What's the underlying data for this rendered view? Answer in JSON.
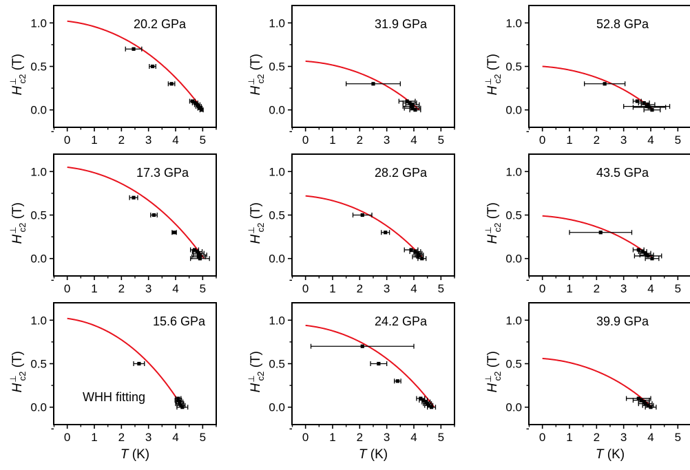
{
  "x_axis_label": {
    "var": "T",
    "unit": " (K)"
  },
  "y_axis_label": {
    "var": "H",
    "sup": "⊥",
    "sub": "c2",
    "unit": " (T)"
  },
  "colors": {
    "fit": "#e8121d",
    "data": "#000000",
    "axis": "#000000"
  },
  "chart_data": [
    {
      "type": "scatter",
      "title": "20.2 GPa",
      "xlim": [
        -0.5,
        5.5
      ],
      "ylim": [
        -0.2,
        1.2
      ],
      "xticks": [
        "0",
        "1",
        "2",
        "3",
        "4",
        "5"
      ],
      "yticks": [
        "0.0",
        "0.5",
        "1.0"
      ],
      "fit": {
        "h0": 1.02,
        "tc": 5.0
      },
      "points": [
        {
          "x": 2.45,
          "y": 0.7,
          "xerr": 0.3
        },
        {
          "x": 3.15,
          "y": 0.5,
          "xerr": 0.12
        },
        {
          "x": 3.85,
          "y": 0.3,
          "xerr": 0.12
        },
        {
          "x": 4.62,
          "y": 0.1,
          "xerr": 0.1
        },
        {
          "x": 4.72,
          "y": 0.08,
          "xerr": 0.1
        },
        {
          "x": 4.8,
          "y": 0.06,
          "xerr": 0.1
        },
        {
          "x": 4.85,
          "y": 0.04,
          "xerr": 0.1
        },
        {
          "x": 4.9,
          "y": 0.02,
          "xerr": 0.08
        },
        {
          "x": 4.96,
          "y": 0.0,
          "xerr": 0.06
        }
      ]
    },
    {
      "type": "scatter",
      "title": "31.9 GPa",
      "xlim": [
        -0.5,
        5.5
      ],
      "ylim": [
        -0.2,
        1.2
      ],
      "xticks": [
        "0",
        "1",
        "2",
        "3",
        "4",
        "5"
      ],
      "yticks": [
        "0.0",
        "0.5",
        "1.0"
      ],
      "fit": {
        "h0": 0.56,
        "tc": 4.2
      },
      "points": [
        {
          "x": 2.5,
          "y": 0.3,
          "xerr": 1.0
        },
        {
          "x": 3.75,
          "y": 0.1,
          "xerr": 0.3
        },
        {
          "x": 3.85,
          "y": 0.08,
          "xerr": 0.25
        },
        {
          "x": 3.95,
          "y": 0.06,
          "xerr": 0.25
        },
        {
          "x": 3.9,
          "y": 0.04,
          "xerr": 0.3
        },
        {
          "x": 3.95,
          "y": 0.02,
          "xerr": 0.3
        },
        {
          "x": 4.05,
          "y": 0.0,
          "xerr": 0.2
        }
      ]
    },
    {
      "type": "scatter",
      "title": "52.8 GPa",
      "xlim": [
        -0.5,
        5.5
      ],
      "ylim": [
        -0.2,
        1.2
      ],
      "xticks": [
        "0",
        "1",
        "2",
        "3",
        "4",
        "5"
      ],
      "yticks": [
        "0.0",
        "0.5",
        "1.0"
      ],
      "fit": {
        "h0": 0.5,
        "tc": 4.1
      },
      "points": [
        {
          "x": 2.3,
          "y": 0.3,
          "xerr": 0.75
        },
        {
          "x": 3.5,
          "y": 0.1,
          "xerr": 0.15
        },
        {
          "x": 3.75,
          "y": 0.08,
          "xerr": 0.2
        },
        {
          "x": 3.9,
          "y": 0.06,
          "xerr": 0.25
        },
        {
          "x": 3.85,
          "y": 0.04,
          "xerr": 0.85
        },
        {
          "x": 3.95,
          "y": 0.03,
          "xerr": 0.6
        },
        {
          "x": 4.05,
          "y": 0.0,
          "xerr": 0.3
        }
      ]
    },
    {
      "type": "scatter",
      "title": "17.3 GPa",
      "xlim": [
        -0.5,
        5.5
      ],
      "ylim": [
        -0.2,
        1.2
      ],
      "xticks": [
        "0",
        "1",
        "2",
        "3",
        "4",
        "5"
      ],
      "yticks": [
        "0.0",
        "0.5",
        "1.0"
      ],
      "fit": {
        "h0": 1.05,
        "tc": 5.05
      },
      "points": [
        {
          "x": 2.45,
          "y": 0.7,
          "xerr": 0.15
        },
        {
          "x": 3.2,
          "y": 0.5,
          "xerr": 0.12
        },
        {
          "x": 3.95,
          "y": 0.3,
          "xerr": 0.08
        },
        {
          "x": 4.7,
          "y": 0.1,
          "xerr": 0.15
        },
        {
          "x": 4.8,
          "y": 0.08,
          "xerr": 0.18
        },
        {
          "x": 4.85,
          "y": 0.06,
          "xerr": 0.2
        },
        {
          "x": 4.9,
          "y": 0.04,
          "xerr": 0.25
        },
        {
          "x": 4.85,
          "y": 0.02,
          "xerr": 0.25
        },
        {
          "x": 4.9,
          "y": 0.0,
          "xerr": 0.35
        }
      ]
    },
    {
      "type": "scatter",
      "title": "28.2 GPa",
      "xlim": [
        -0.5,
        5.5
      ],
      "ylim": [
        -0.2,
        1.2
      ],
      "xticks": [
        "0",
        "1",
        "2",
        "3",
        "4",
        "5"
      ],
      "yticks": [
        "0.0",
        "0.5",
        "1.0"
      ],
      "fit": {
        "h0": 0.72,
        "tc": 4.35
      },
      "points": [
        {
          "x": 2.1,
          "y": 0.5,
          "xerr": 0.35
        },
        {
          "x": 2.95,
          "y": 0.3,
          "xerr": 0.15
        },
        {
          "x": 3.9,
          "y": 0.1,
          "xerr": 0.25
        },
        {
          "x": 4.05,
          "y": 0.08,
          "xerr": 0.2
        },
        {
          "x": 4.15,
          "y": 0.06,
          "xerr": 0.15
        },
        {
          "x": 4.2,
          "y": 0.04,
          "xerr": 0.15
        },
        {
          "x": 4.15,
          "y": 0.02,
          "xerr": 0.2
        },
        {
          "x": 4.3,
          "y": 0.0,
          "xerr": 0.15
        }
      ]
    },
    {
      "type": "scatter",
      "title": "43.5 GPa",
      "xlim": [
        -0.5,
        5.5
      ],
      "ylim": [
        -0.2,
        1.2
      ],
      "xticks": [
        "0",
        "1",
        "2",
        "3",
        "4",
        "5"
      ],
      "yticks": [
        "0.0",
        "0.5",
        "1.0"
      ],
      "fit": {
        "h0": 0.49,
        "tc": 4.1
      },
      "points": [
        {
          "x": 2.15,
          "y": 0.3,
          "xerr": 1.15
        },
        {
          "x": 3.55,
          "y": 0.1,
          "xerr": 0.2
        },
        {
          "x": 3.7,
          "y": 0.08,
          "xerr": 0.15
        },
        {
          "x": 3.8,
          "y": 0.06,
          "xerr": 0.2
        },
        {
          "x": 3.85,
          "y": 0.04,
          "xerr": 0.25
        },
        {
          "x": 3.9,
          "y": 0.03,
          "xerr": 0.5
        },
        {
          "x": 4.05,
          "y": 0.0,
          "xerr": 0.25
        }
      ]
    },
    {
      "type": "scatter",
      "title": "15.6 GPa",
      "xlim": [
        -0.5,
        5.5
      ],
      "ylim": [
        -0.2,
        1.2
      ],
      "xticks": [
        "0",
        "1",
        "2",
        "3",
        "4",
        "5"
      ],
      "yticks": [
        "0.0",
        "0.5",
        "1.0"
      ],
      "annotation": "WHH fitting",
      "fit": {
        "h0": 1.02,
        "tc": 4.25
      },
      "points": [
        {
          "x": 2.65,
          "y": 0.5,
          "xerr": 0.2
        },
        {
          "x": 4.1,
          "y": 0.1,
          "xerr": 0.1
        },
        {
          "x": 4.1,
          "y": 0.08,
          "xerr": 0.12
        },
        {
          "x": 4.15,
          "y": 0.06,
          "xerr": 0.12
        },
        {
          "x": 4.15,
          "y": 0.04,
          "xerr": 0.15
        },
        {
          "x": 4.2,
          "y": 0.02,
          "xerr": 0.15
        },
        {
          "x": 4.25,
          "y": 0.0,
          "xerr": 0.2
        }
      ]
    },
    {
      "type": "scatter",
      "title": "24.2 GPa",
      "xlim": [
        -0.5,
        5.5
      ],
      "ylim": [
        -0.2,
        1.2
      ],
      "xticks": [
        "0",
        "1",
        "2",
        "3",
        "4",
        "5"
      ],
      "yticks": [
        "0.0",
        "0.5",
        "1.0"
      ],
      "fit": {
        "h0": 0.94,
        "tc": 4.75
      },
      "points": [
        {
          "x": 2.1,
          "y": 0.7,
          "xerr": 1.9
        },
        {
          "x": 2.7,
          "y": 0.5,
          "xerr": 0.3
        },
        {
          "x": 3.4,
          "y": 0.3,
          "xerr": 0.12
        },
        {
          "x": 4.25,
          "y": 0.1,
          "xerr": 0.15
        },
        {
          "x": 4.35,
          "y": 0.08,
          "xerr": 0.15
        },
        {
          "x": 4.45,
          "y": 0.06,
          "xerr": 0.15
        },
        {
          "x": 4.5,
          "y": 0.04,
          "xerr": 0.15
        },
        {
          "x": 4.55,
          "y": 0.02,
          "xerr": 0.15
        },
        {
          "x": 4.65,
          "y": 0.0,
          "xerr": 0.15
        }
      ]
    },
    {
      "type": "scatter",
      "title": "39.9 GPa",
      "xlim": [
        -0.5,
        5.5
      ],
      "ylim": [
        -0.2,
        1.2
      ],
      "xticks": [
        "0",
        "1",
        "2",
        "3",
        "4",
        "5"
      ],
      "yticks": [
        "0.0",
        "0.5",
        "1.0"
      ],
      "fit": {
        "h0": 0.56,
        "tc": 4.05
      },
      "points": [
        {
          "x": 3.55,
          "y": 0.1,
          "xerr": 0.45
        },
        {
          "x": 3.65,
          "y": 0.08,
          "xerr": 0.3
        },
        {
          "x": 3.75,
          "y": 0.06,
          "xerr": 0.2
        },
        {
          "x": 3.8,
          "y": 0.04,
          "xerr": 0.25
        },
        {
          "x": 3.9,
          "y": 0.02,
          "xerr": 0.2
        },
        {
          "x": 4.0,
          "y": 0.0,
          "xerr": 0.2
        }
      ]
    }
  ]
}
